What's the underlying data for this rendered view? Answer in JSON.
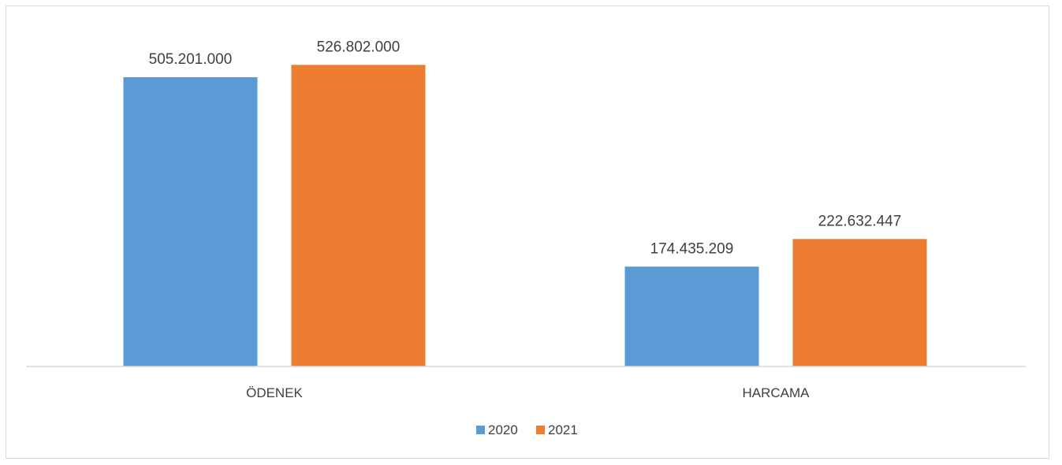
{
  "chart_data": {
    "type": "bar",
    "categories": [
      "ÖDENEK",
      "HARCAMA"
    ],
    "series": [
      {
        "name": "2020",
        "color": "#5b9bd5",
        "values": [
          505201000,
          174435209
        ],
        "labels": [
          "505.201.000",
          "174.435.209"
        ]
      },
      {
        "name": "2021",
        "color": "#ed7d31",
        "values": [
          526802000,
          222632447
        ],
        "labels": [
          "526.802.000",
          "222.632.447"
        ]
      }
    ],
    "title": "",
    "xlabel": "",
    "ylabel": "",
    "ylim": [
      0,
      600000000
    ],
    "grid": false,
    "legend": "bottom-center"
  }
}
